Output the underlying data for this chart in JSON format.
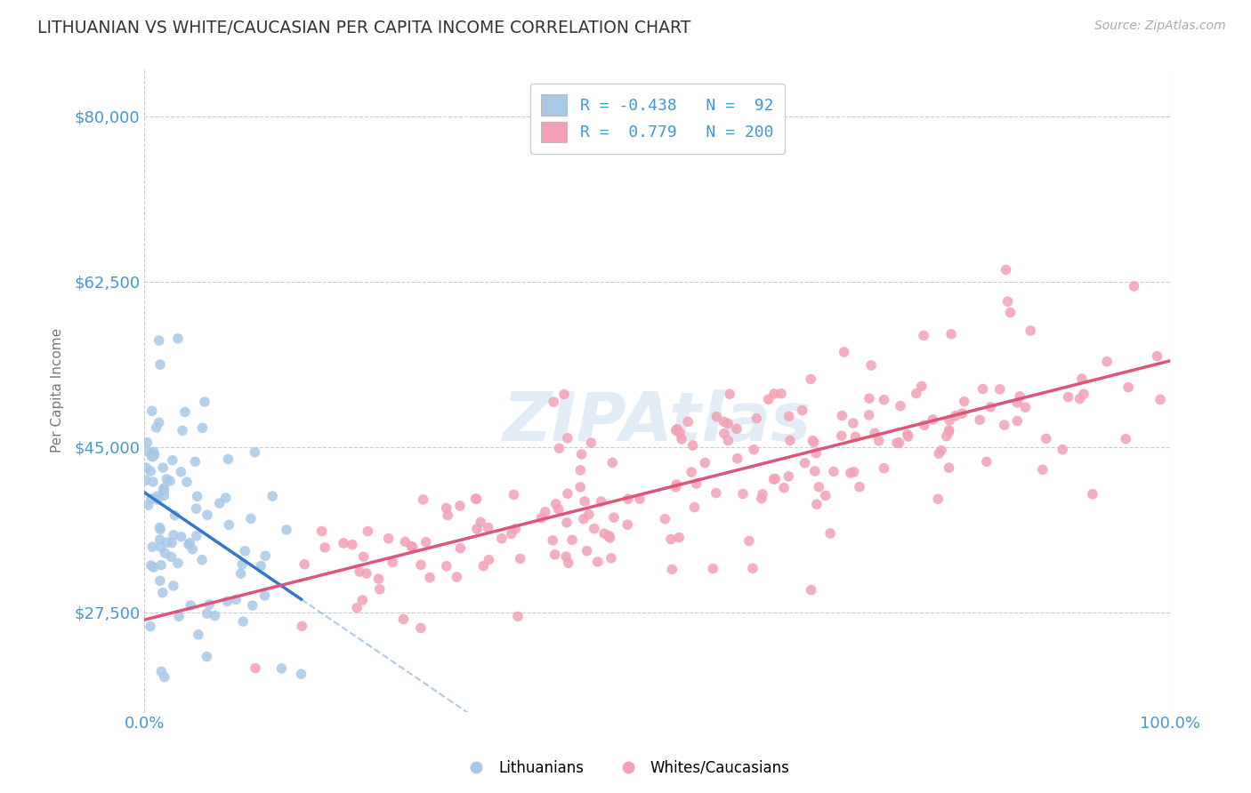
{
  "title": "LITHUANIAN VS WHITE/CAUCASIAN PER CAPITA INCOME CORRELATION CHART",
  "source": "Source: ZipAtlas.com",
  "ylabel": "Per Capita Income",
  "xlim": [
    0,
    1
  ],
  "ylim": [
    17000,
    85000
  ],
  "yticks": [
    27500,
    45000,
    62500,
    80000
  ],
  "ytick_labels": [
    "$27,500",
    "$45,000",
    "$62,500",
    "$80,000"
  ],
  "xticks": [
    0,
    1
  ],
  "xtick_labels": [
    "0.0%",
    "100.0%"
  ],
  "r_lithuanian": -0.438,
  "n_lithuanian": 92,
  "r_white": 0.779,
  "n_white": 200,
  "color_lithuanian": "#a8c8e8",
  "color_white": "#f4a0b5",
  "color_line_lithuanian": "#3377cc",
  "color_line_white": "#dd5577",
  "background_color": "#ffffff",
  "grid_color": "#cccccc",
  "title_color": "#333333",
  "axis_color": "#4499cc",
  "legend_label_1": "Lithuanians",
  "legend_label_2": "Whites/Caucasians"
}
